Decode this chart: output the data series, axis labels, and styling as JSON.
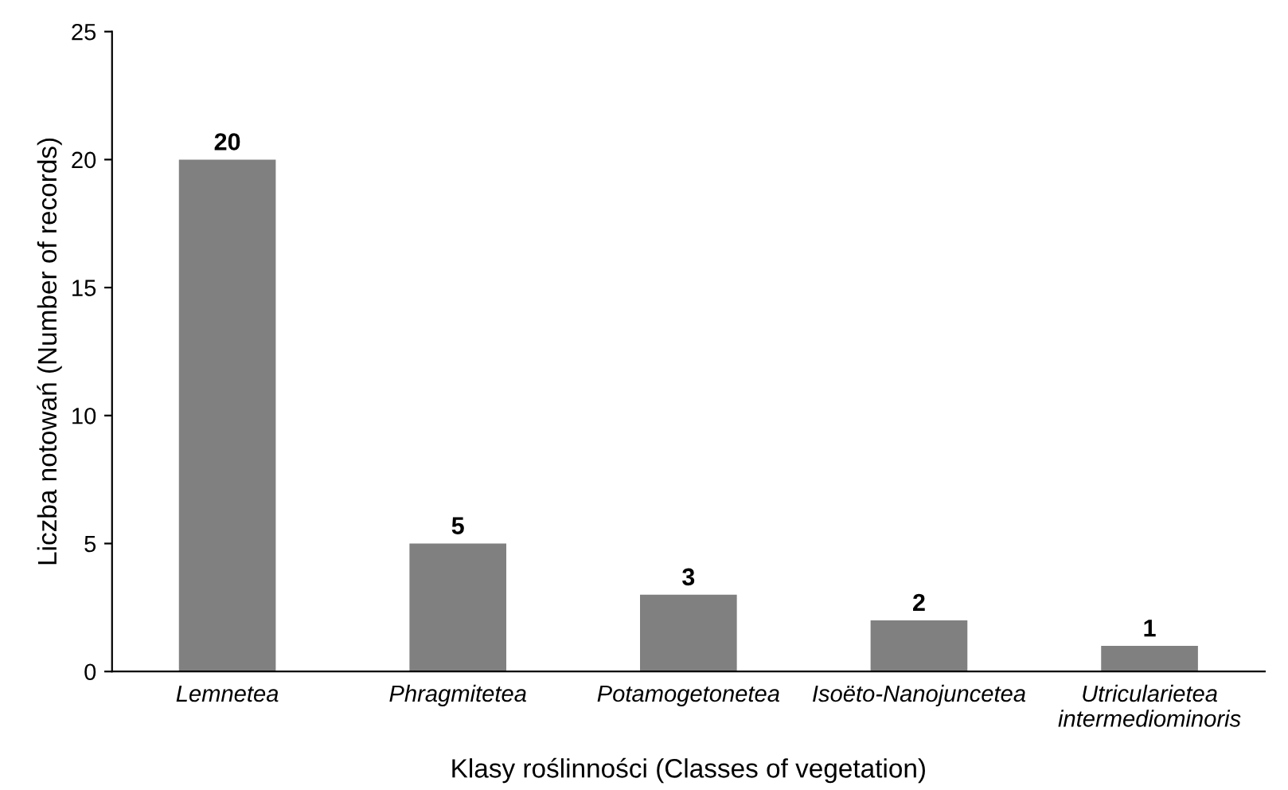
{
  "chart_data": {
    "type": "bar",
    "xlabel": "Klasy roślinności (Classes of vegetation)",
    "ylabel": "Liczba notowań (Number of records)",
    "categories": [
      "Lemnetea",
      "Phragmitetea",
      "Potamogetonetea",
      "Isoëto-Nanojuncetea",
      "Utricularietea\nintermediominoris"
    ],
    "values": [
      20,
      5,
      3,
      2,
      1
    ],
    "color": "#808080",
    "ylim": [
      0,
      25
    ],
    "yticks": [
      0,
      5,
      10,
      15,
      20,
      25
    ],
    "grid": false,
    "data_labels": true
  }
}
